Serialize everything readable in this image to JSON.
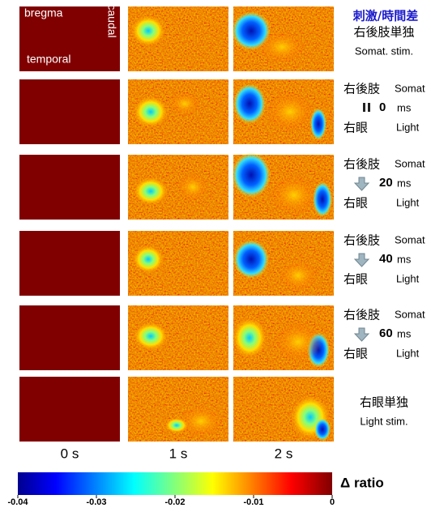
{
  "header": "刺激/時間差",
  "orientation": {
    "bregma": "bregma",
    "caudal": "caudal",
    "temporal": "temporal"
  },
  "columns": [
    "0 s",
    "1 s",
    "2 s"
  ],
  "rows": [
    {
      "label": "右後肢単独",
      "sublabel": "Somat. stim."
    },
    {
      "first": "右後肢",
      "first_en": "Somat",
      "delay": 0,
      "unit": "ms",
      "second": "右眼",
      "second_en": "Light"
    },
    {
      "first": "右後肢",
      "first_en": "Somat",
      "delay": 20,
      "unit": "ms",
      "second": "右眼",
      "second_en": "Light"
    },
    {
      "first": "右後肢",
      "first_en": "Somat",
      "delay": 40,
      "unit": "ms",
      "second": "右眼",
      "second_en": "Light"
    },
    {
      "first": "右後肢",
      "first_en": "Somat",
      "delay": 60,
      "unit": "ms",
      "second": "右眼",
      "second_en": "Light"
    },
    {
      "label": "右眼単独",
      "sublabel": "Light stim."
    }
  ],
  "colorbar": {
    "label": "Δ ratio",
    "lim": [
      -0.04,
      0
    ],
    "ticks": [
      -0.04,
      -0.03,
      -0.02,
      -0.01,
      0
    ]
  }
}
